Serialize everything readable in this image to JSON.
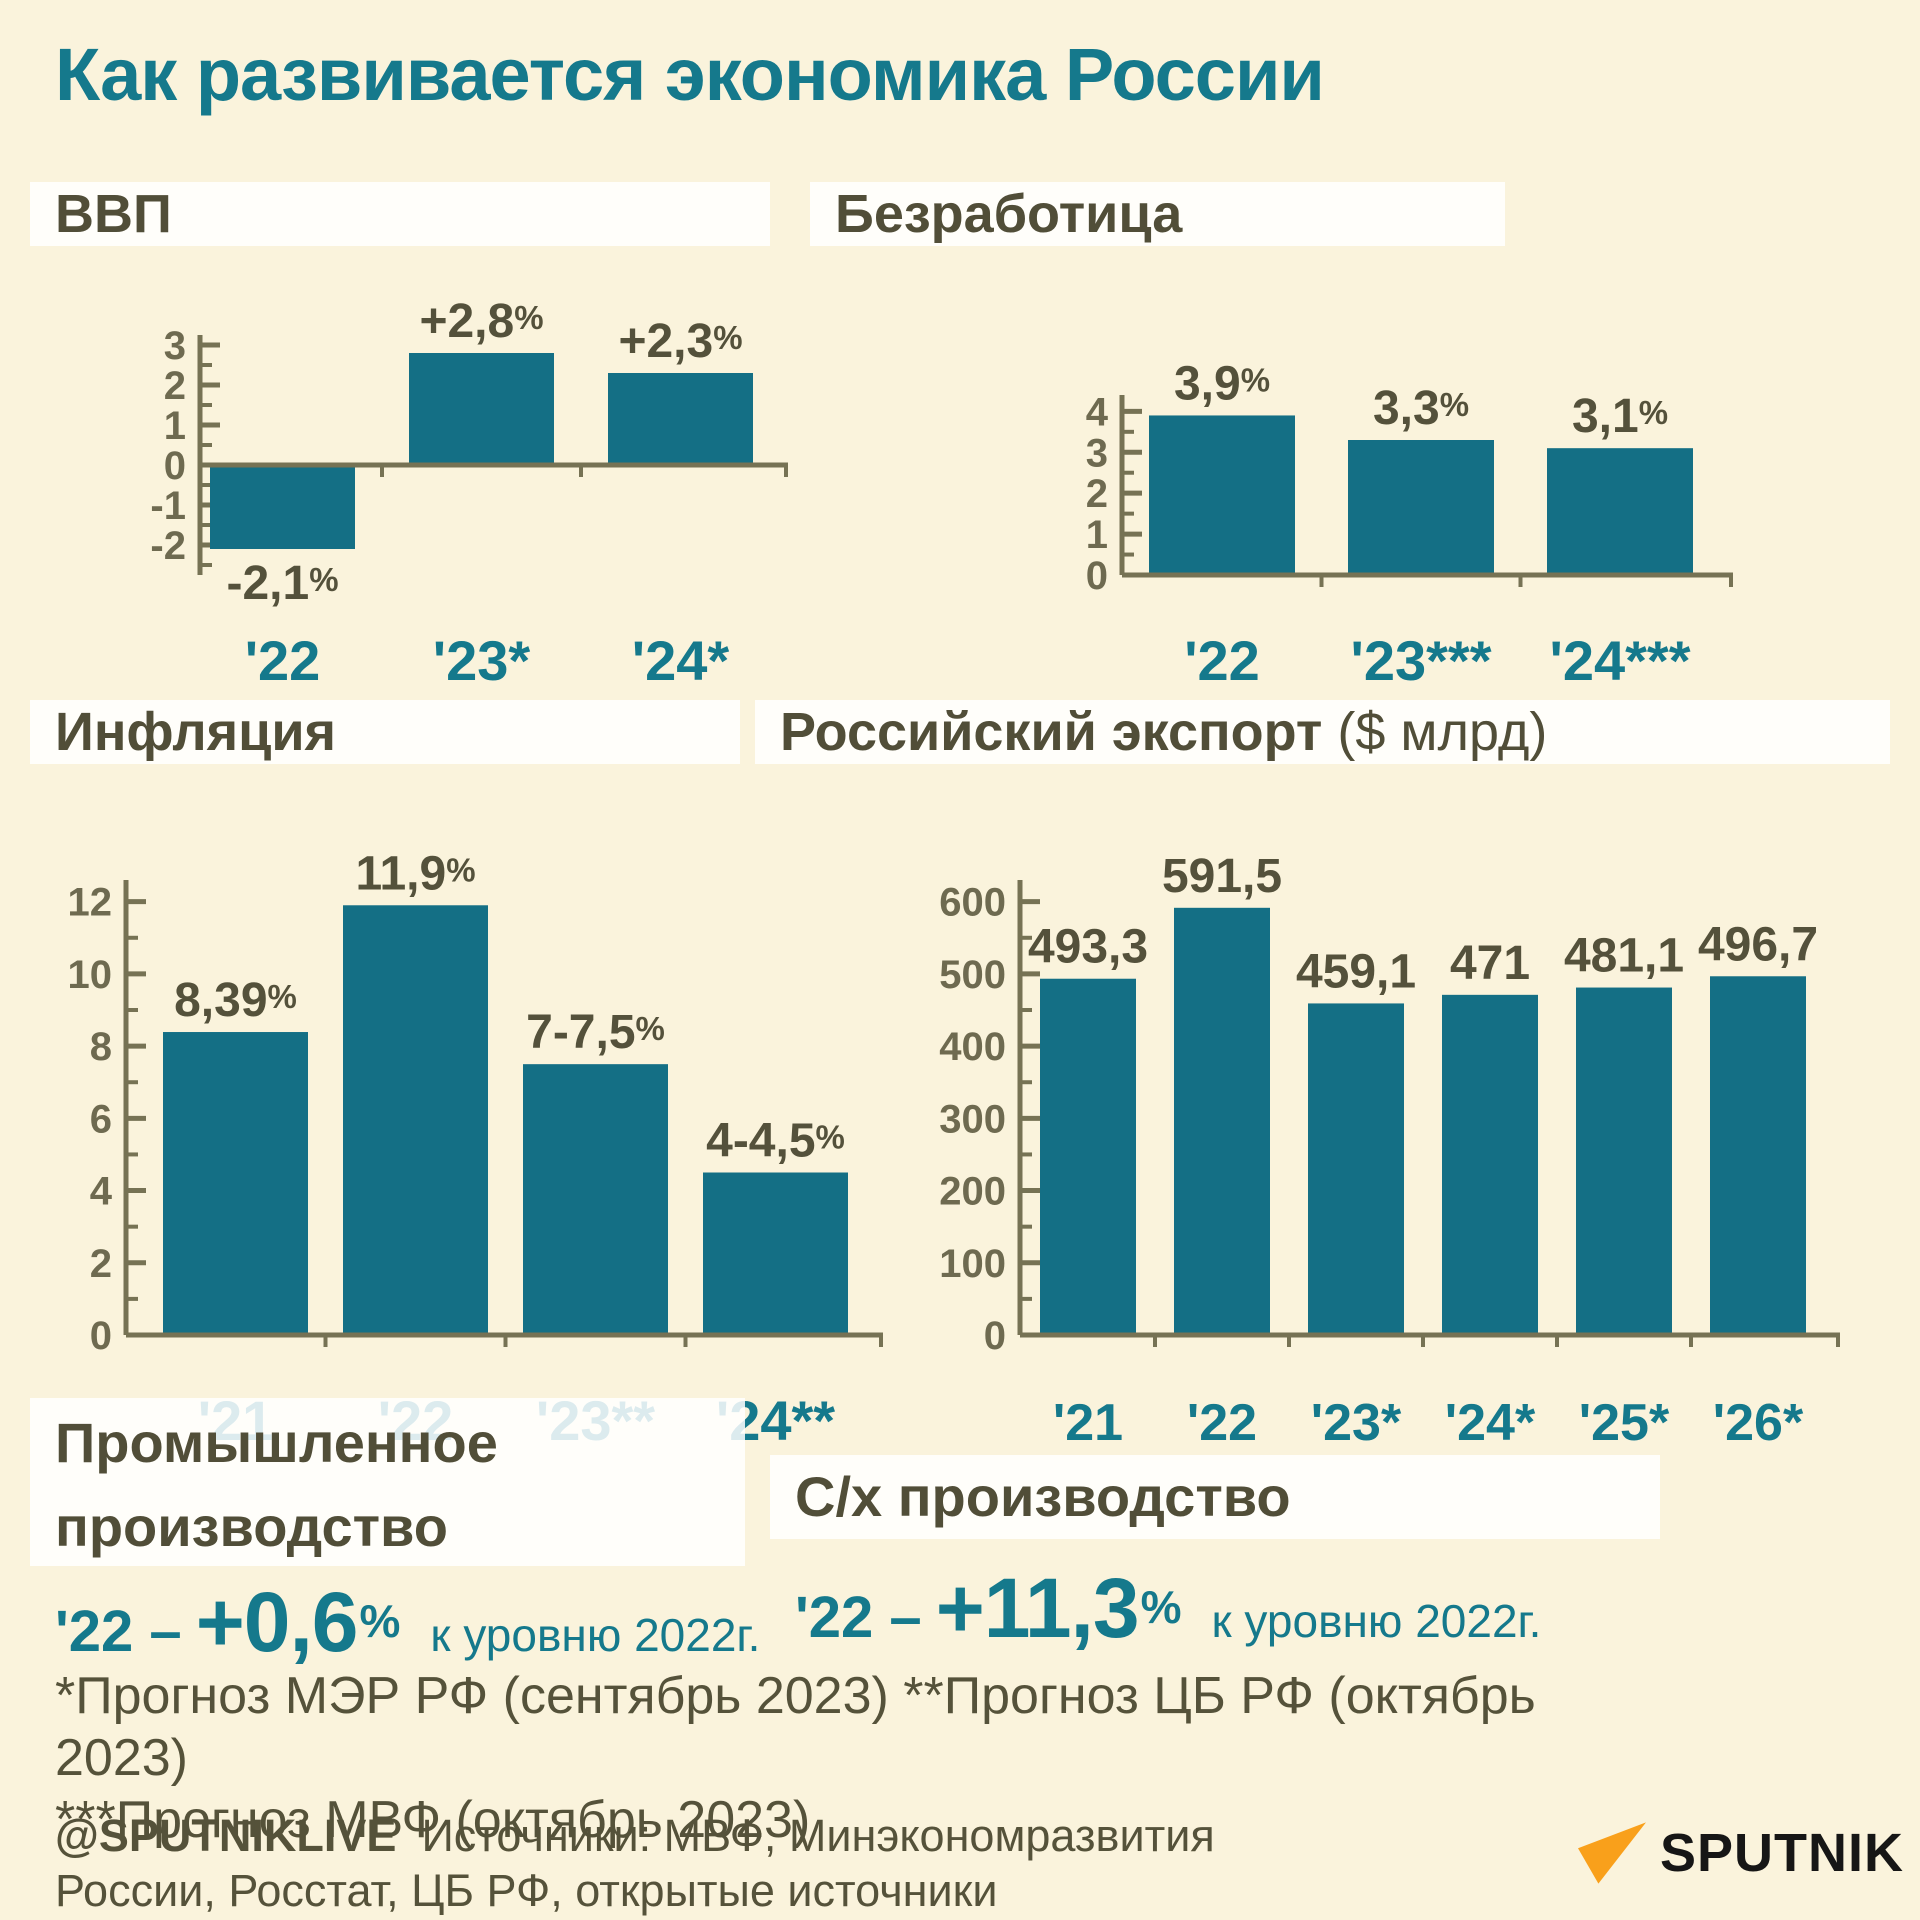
{
  "page": {
    "title": "Как развивается экономика России",
    "background": "#FAF3DC",
    "palette": {
      "teal_text": "#15798C",
      "bar_fill": "#146F85",
      "heading_olive": "#514E38",
      "label_olive": "#54513B",
      "axis_number": "#6E6A50",
      "axis_line": "#767254",
      "strip_white": "rgba(255,255,255,0.85)"
    },
    "footnotes": [
      "*Прогноз МЭР РФ (сентябрь 2023) **Прогноз ЦБ РФ (октябрь 2023)",
      "***Прогноз МВФ (октябрь 2023)"
    ],
    "attribution": {
      "handle": "@SPUTNIKLIVE",
      "line1": "Источники: МВФ, Минэкономразвития",
      "line2": "России, Росстат, ЦБ РФ, открытые источники"
    },
    "logo": {
      "text": "SPUTNIK",
      "arrow_color": "#F9A01B",
      "text_color": "#161616"
    }
  },
  "chart_data": [
    {
      "id": "gdp",
      "type": "bar",
      "title": "ВВП",
      "categories": [
        "'22",
        "'23*",
        "'24*"
      ],
      "values": [
        -2.1,
        2.8,
        2.3
      ],
      "bar_labels": [
        "-2,1",
        "+2,8",
        "+2,3"
      ],
      "label_suffix": "%",
      "ylim": [
        -2.75,
        3.25
      ],
      "yticks": [
        -2,
        -1,
        0,
        1,
        2,
        3
      ],
      "minor_step": 0.5,
      "grid": false,
      "legend": false
    },
    {
      "id": "unemployment",
      "type": "bar",
      "title": "Безработица",
      "categories": [
        "'22",
        "'23***",
        "'24***"
      ],
      "values": [
        3.9,
        3.3,
        3.1
      ],
      "bar_labels": [
        "3,9",
        "3,3",
        "3,1"
      ],
      "label_suffix": "%",
      "ylim": [
        0,
        4.4
      ],
      "yticks": [
        0,
        1,
        2,
        3,
        4
      ],
      "minor_step": 0.5,
      "grid": false,
      "legend": false
    },
    {
      "id": "inflation",
      "type": "bar",
      "title": "Инфляция",
      "categories": [
        "'21",
        "'22",
        "'23**",
        "'24**"
      ],
      "values": [
        8.39,
        11.9,
        7.5,
        4.5
      ],
      "bar_labels": [
        "8,39",
        "11,9",
        "7-7,5",
        "4-4,5"
      ],
      "label_suffix": "%",
      "ylim": [
        0,
        12.6
      ],
      "yticks": [
        0,
        2,
        4,
        6,
        8,
        10,
        12
      ],
      "minor_step": 1,
      "grid": false,
      "legend": false
    },
    {
      "id": "exports",
      "type": "bar",
      "title": "Российский экспорт",
      "title_suffix": "($ млрд)",
      "categories": [
        "'21",
        "'22",
        "'23*",
        "'24*",
        "'25*",
        "'26*"
      ],
      "values": [
        493.3,
        591.5,
        459.1,
        471,
        481.1,
        496.7
      ],
      "bar_labels": [
        "493,3",
        "591,5",
        "459,1",
        "471",
        "481,1",
        "496,7"
      ],
      "label_suffix": "",
      "ylim": [
        0,
        630
      ],
      "yticks": [
        0,
        100,
        200,
        300,
        400,
        500,
        600
      ],
      "minor_step": 50,
      "grid": false,
      "legend": false
    }
  ],
  "stats": [
    {
      "title_lines": [
        "Промышленное",
        "производство"
      ],
      "prefix": "'22 –",
      "value": "+0,6",
      "suffix": "%",
      "note": "к уровню 2022г."
    },
    {
      "title_lines": [
        "С/х производство"
      ],
      "prefix": "'22 –",
      "value": "+11,3",
      "suffix": "%",
      "note": "к уровню 2022г."
    }
  ]
}
